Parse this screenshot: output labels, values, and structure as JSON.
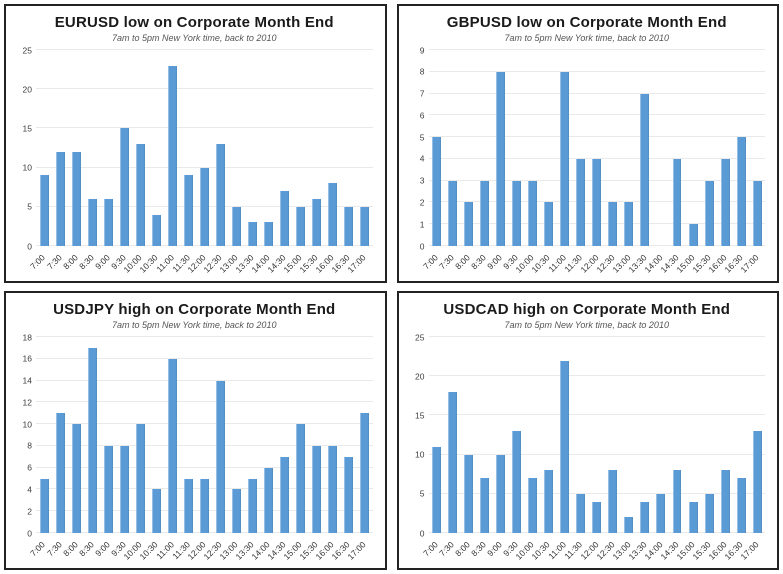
{
  "page": {
    "background": "#ffffff",
    "layout": "2x2-grid-of-bar-charts"
  },
  "colors": {
    "bar": "#5b9bd5",
    "gridline": "#e9e9e9",
    "panel_border": "#222222",
    "title_text": "#1a1a1a",
    "subtitle_text": "#555555",
    "tick_text": "#3d3d3d"
  },
  "chart_data": [
    {
      "id": "eurusd",
      "type": "bar",
      "title": "EURUSD low on Corporate Month End",
      "subtitle": "7am to 5pm New York time, back to 2010",
      "categories": [
        "7:00",
        "7:30",
        "8:00",
        "8:30",
        "9:00",
        "9:30",
        "10:00",
        "10:30",
        "11:00",
        "11:30",
        "12:00",
        "12:30",
        "13:00",
        "13:30",
        "14:00",
        "14:30",
        "15:00",
        "15:30",
        "16:00",
        "16:30",
        "17:00"
      ],
      "values": [
        9,
        12,
        12,
        6,
        6,
        15,
        13,
        4,
        23,
        9,
        10,
        13,
        5,
        3,
        3,
        7,
        5,
        6,
        8,
        5,
        5
      ],
      "xlabel": "",
      "ylabel": "",
      "ylim": [
        0,
        25
      ],
      "ytick_step": 5,
      "grid": true,
      "legend": "none"
    },
    {
      "id": "gbpusd",
      "type": "bar",
      "title": "GBPUSD low on Corporate Month End",
      "subtitle": "7am to 5pm New York time, back to 2010",
      "categories": [
        "7:00",
        "7:30",
        "8:00",
        "8:30",
        "9:00",
        "9:30",
        "10:00",
        "10:30",
        "11:00",
        "11:30",
        "12:00",
        "12:30",
        "13:00",
        "13:30",
        "14:00",
        "14:30",
        "15:00",
        "15:30",
        "16:00",
        "16:30",
        "17:00"
      ],
      "values": [
        5,
        3,
        2,
        3,
        8,
        3,
        3,
        2,
        8,
        4,
        4,
        2,
        2,
        7,
        0,
        4,
        1,
        3,
        4,
        5,
        3
      ],
      "xlabel": "",
      "ylabel": "",
      "ylim": [
        0,
        9
      ],
      "ytick_step": 1,
      "grid": true,
      "legend": "none"
    },
    {
      "id": "usdjpy",
      "type": "bar",
      "title": "USDJPY high on Corporate Month End",
      "subtitle": "7am to 5pm New York time, back to 2010",
      "categories": [
        "7:00",
        "7:30",
        "8:00",
        "8:30",
        "9:00",
        "9:30",
        "10:00",
        "10:30",
        "11:00",
        "11:30",
        "12:00",
        "12:30",
        "13:00",
        "13:30",
        "14:00",
        "14:30",
        "15:00",
        "15:30",
        "16:00",
        "16:30",
        "17:00"
      ],
      "values": [
        5,
        11,
        10,
        17,
        8,
        8,
        10,
        4,
        16,
        5,
        5,
        14,
        4,
        5,
        6,
        7,
        10,
        8,
        8,
        7,
        11
      ],
      "xlabel": "",
      "ylabel": "",
      "ylim": [
        0,
        18
      ],
      "ytick_step": 2,
      "grid": true,
      "legend": "none"
    },
    {
      "id": "usdcad",
      "type": "bar",
      "title": "USDCAD high on Corporate Month End",
      "subtitle": "7am to 5pm New York time, back to 2010",
      "categories": [
        "7:00",
        "7:30",
        "8:00",
        "8:30",
        "9:00",
        "9:30",
        "10:00",
        "10:30",
        "11:00",
        "11:30",
        "12:00",
        "12:30",
        "13:00",
        "13:30",
        "14:00",
        "14:30",
        "15:00",
        "15:30",
        "16:00",
        "16:30",
        "17:00"
      ],
      "values": [
        11,
        18,
        10,
        7,
        10,
        13,
        7,
        8,
        22,
        5,
        4,
        8,
        2,
        4,
        5,
        8,
        4,
        5,
        8,
        7,
        13
      ],
      "xlabel": "",
      "ylabel": "",
      "ylim": [
        0,
        25
      ],
      "ytick_step": 5,
      "grid": true,
      "legend": "none"
    }
  ]
}
